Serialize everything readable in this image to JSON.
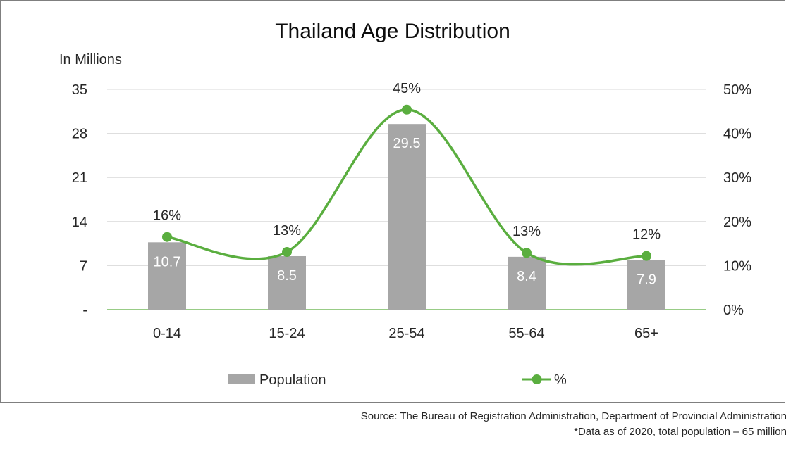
{
  "chart_data": {
    "title": "Thailand Age Distribution",
    "y_left_label": "In Millions",
    "categories": [
      "0-14",
      "15-24",
      "25-54",
      "55-64",
      "65+"
    ],
    "y_left": {
      "min": 0,
      "max": 35,
      "ticks": [
        0,
        7,
        14,
        21,
        28,
        35
      ],
      "tick_labels": [
        "-",
        "7",
        "14",
        "21",
        "28",
        "35"
      ]
    },
    "y_right": {
      "min": 0,
      "max": 50,
      "ticks": [
        0,
        10,
        20,
        30,
        40,
        50
      ],
      "tick_labels": [
        "0%",
        "10%",
        "20%",
        "30%",
        "40%",
        "50%"
      ]
    },
    "series": [
      {
        "name": "Population",
        "type": "bar",
        "axis": "left",
        "color": "#a6a6a6",
        "values": [
          10.7,
          8.5,
          29.5,
          8.4,
          7.9
        ],
        "data_labels": [
          "10.7",
          "8.5",
          "29.5",
          "8.4",
          "7.9"
        ]
      },
      {
        "name": "%",
        "type": "line",
        "axis": "right",
        "smooth": true,
        "color": "#5aae3f",
        "values": [
          16.5,
          13.1,
          45.4,
          12.9,
          12.2
        ],
        "data_labels": [
          "16%",
          "13%",
          "45%",
          "13%",
          "12%"
        ]
      }
    ],
    "legend_position": "bottom",
    "gridlines": true
  },
  "footnotes": {
    "source": "Source: The Bureau of Registration Administration, Department of Provincial Administration",
    "data_note": "*Data as of 2020, total population – 65 million"
  }
}
